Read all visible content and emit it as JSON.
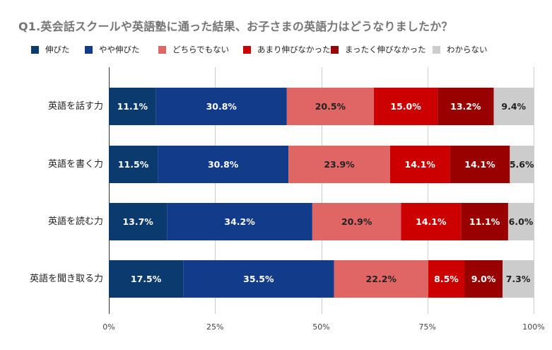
{
  "chart_data": {
    "type": "bar",
    "orientation": "horizontal",
    "stacked": true,
    "percent": true,
    "title": "Q1.英会話スクールや英語塾に通った結果、お子さまの英語力はどうなりましたか？",
    "categories": [
      "英語を話す力",
      "英語を書く力",
      "英語を読む力",
      "英語を聞き取る力"
    ],
    "series": [
      {
        "name": "伸びた",
        "color": "#0b3a6e",
        "values": [
          11.1,
          11.5,
          13.7,
          17.5
        ],
        "labels": [
          "11.1%",
          "11.5%",
          "13.7%",
          "17.5%"
        ],
        "label_color": "#ffffff"
      },
      {
        "name": "やや伸びた",
        "color": "#123b8a",
        "values": [
          30.8,
          30.8,
          34.2,
          35.5
        ],
        "labels": [
          "30.8%",
          "30.8%",
          "34.2%",
          "35.5%"
        ],
        "label_color": "#ffffff"
      },
      {
        "name": "どちらでもない",
        "color": "#e06666",
        "values": [
          20.5,
          23.9,
          20.9,
          22.2
        ],
        "labels": [
          "20.5%",
          "23.9%",
          "20.9%",
          "22.2%"
        ],
        "label_color": "#222222"
      },
      {
        "name": "あまり伸びなかった",
        "color": "#cc0000",
        "values": [
          15.0,
          14.1,
          14.1,
          8.5
        ],
        "labels": [
          "15.0%",
          "14.1%",
          "14.1%",
          "8.5%"
        ],
        "label_color": "#ffffff"
      },
      {
        "name": "まったく伸びなかった",
        "color": "#990000",
        "values": [
          13.2,
          14.1,
          11.1,
          9.0
        ],
        "labels": [
          "13.2%",
          "14.1%",
          "11.1%",
          "9.0%"
        ],
        "label_color": "#ffffff"
      },
      {
        "name": "わからない",
        "color": "#cccccc",
        "values": [
          9.4,
          5.6,
          6.0,
          7.3
        ],
        "labels": [
          "9.4%",
          "5.6%",
          "6.0%",
          "7.3%"
        ],
        "label_color": "#222222"
      }
    ],
    "xlim": [
      0,
      100
    ],
    "x_ticks": [
      0,
      25,
      50,
      75,
      100
    ],
    "x_tick_labels": [
      "0%",
      "25%",
      "50%",
      "75%",
      "100%"
    ],
    "grid": true,
    "legend_position": "top"
  }
}
